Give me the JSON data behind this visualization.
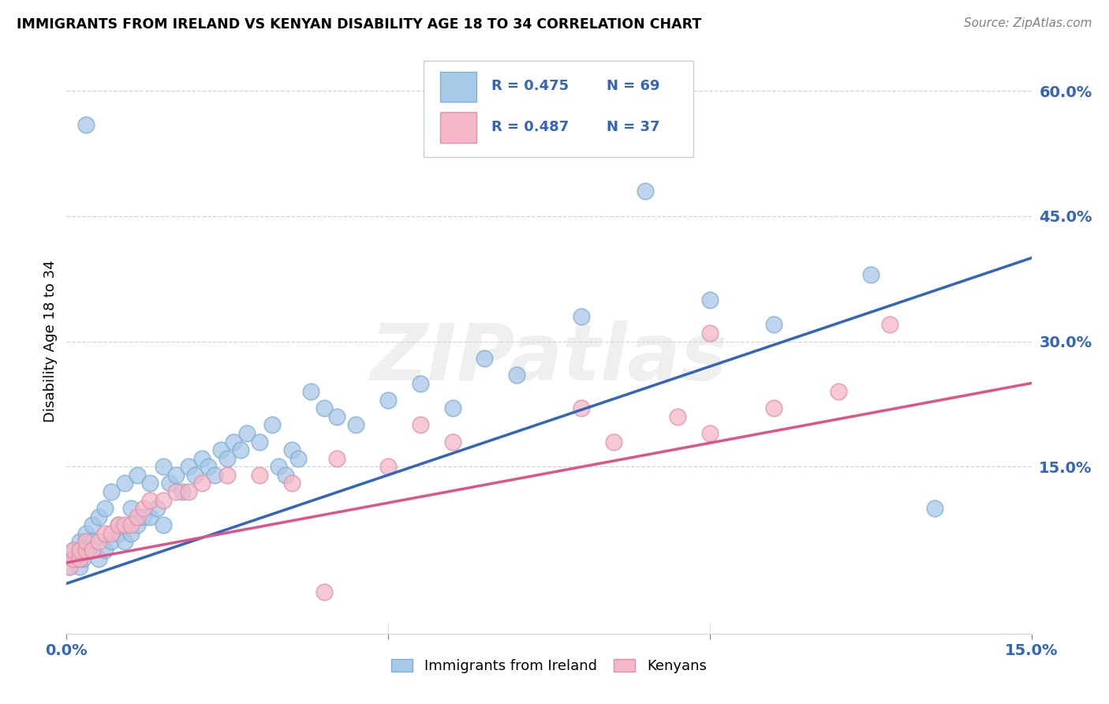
{
  "title": "IMMIGRANTS FROM IRELAND VS KENYAN DISABILITY AGE 18 TO 34 CORRELATION CHART",
  "source": "Source: ZipAtlas.com",
  "ylabel": "Disability Age 18 to 34",
  "right_yticks": [
    "60.0%",
    "45.0%",
    "30.0%",
    "15.0%"
  ],
  "right_ytick_vals": [
    0.6,
    0.45,
    0.3,
    0.15
  ],
  "xmin": 0.0,
  "xmax": 0.15,
  "ymin": -0.05,
  "ymax": 0.65,
  "blue_color": "#a8c8e8",
  "blue_edge_color": "#7bafd4",
  "pink_color": "#f4b8c8",
  "pink_edge_color": "#e090a8",
  "blue_line_color": "#3366bb",
  "pink_line_color": "#dd5588",
  "watermark_text": "ZIPatlas",
  "blue_line_x0": 0.0,
  "blue_line_y0": 0.01,
  "blue_line_x1": 0.15,
  "blue_line_y1": 0.4,
  "pink_line_x0": 0.0,
  "pink_line_y0": 0.035,
  "pink_line_x1": 0.15,
  "pink_line_y1": 0.25,
  "legend_r1": "R = 0.475",
  "legend_n1": "N = 69",
  "legend_r2": "R = 0.487",
  "legend_n2": "N = 37",
  "legend_text_color": "#3366bb",
  "blue_x": [
    0.0005,
    0.001,
    0.001,
    0.0015,
    0.002,
    0.002,
    0.002,
    0.0025,
    0.003,
    0.003,
    0.003,
    0.003,
    0.004,
    0.004,
    0.004,
    0.005,
    0.005,
    0.006,
    0.006,
    0.007,
    0.007,
    0.008,
    0.008,
    0.009,
    0.009,
    0.01,
    0.01,
    0.011,
    0.011,
    0.012,
    0.013,
    0.013,
    0.014,
    0.015,
    0.015,
    0.016,
    0.017,
    0.018,
    0.019,
    0.02,
    0.021,
    0.022,
    0.023,
    0.024,
    0.025,
    0.026,
    0.027,
    0.028,
    0.03,
    0.032,
    0.033,
    0.034,
    0.035,
    0.036,
    0.038,
    0.04,
    0.042,
    0.045,
    0.05,
    0.055,
    0.06,
    0.065,
    0.07,
    0.08,
    0.09,
    0.1,
    0.11,
    0.125,
    0.135
  ],
  "blue_y": [
    0.03,
    0.04,
    0.05,
    0.04,
    0.03,
    0.05,
    0.06,
    0.04,
    0.05,
    0.06,
    0.56,
    0.07,
    0.05,
    0.06,
    0.08,
    0.04,
    0.09,
    0.05,
    0.1,
    0.06,
    0.12,
    0.07,
    0.08,
    0.06,
    0.13,
    0.07,
    0.1,
    0.08,
    0.14,
    0.09,
    0.09,
    0.13,
    0.1,
    0.08,
    0.15,
    0.13,
    0.14,
    0.12,
    0.15,
    0.14,
    0.16,
    0.15,
    0.14,
    0.17,
    0.16,
    0.18,
    0.17,
    0.19,
    0.18,
    0.2,
    0.15,
    0.14,
    0.17,
    0.16,
    0.24,
    0.22,
    0.21,
    0.2,
    0.23,
    0.25,
    0.22,
    0.28,
    0.26,
    0.33,
    0.48,
    0.35,
    0.32,
    0.38,
    0.1
  ],
  "pink_x": [
    0.0005,
    0.001,
    0.001,
    0.002,
    0.002,
    0.003,
    0.003,
    0.004,
    0.005,
    0.006,
    0.007,
    0.008,
    0.009,
    0.01,
    0.011,
    0.012,
    0.013,
    0.015,
    0.017,
    0.019,
    0.021,
    0.025,
    0.03,
    0.035,
    0.04,
    0.042,
    0.05,
    0.055,
    0.06,
    0.08,
    0.085,
    0.095,
    0.1,
    0.11,
    0.12,
    0.128,
    0.1
  ],
  "pink_y": [
    0.03,
    0.04,
    0.05,
    0.04,
    0.05,
    0.05,
    0.06,
    0.05,
    0.06,
    0.07,
    0.07,
    0.08,
    0.08,
    0.08,
    0.09,
    0.1,
    0.11,
    0.11,
    0.12,
    0.12,
    0.13,
    0.14,
    0.14,
    0.13,
    0.0,
    0.16,
    0.15,
    0.2,
    0.18,
    0.22,
    0.18,
    0.21,
    0.19,
    0.22,
    0.24,
    0.32,
    0.31
  ]
}
